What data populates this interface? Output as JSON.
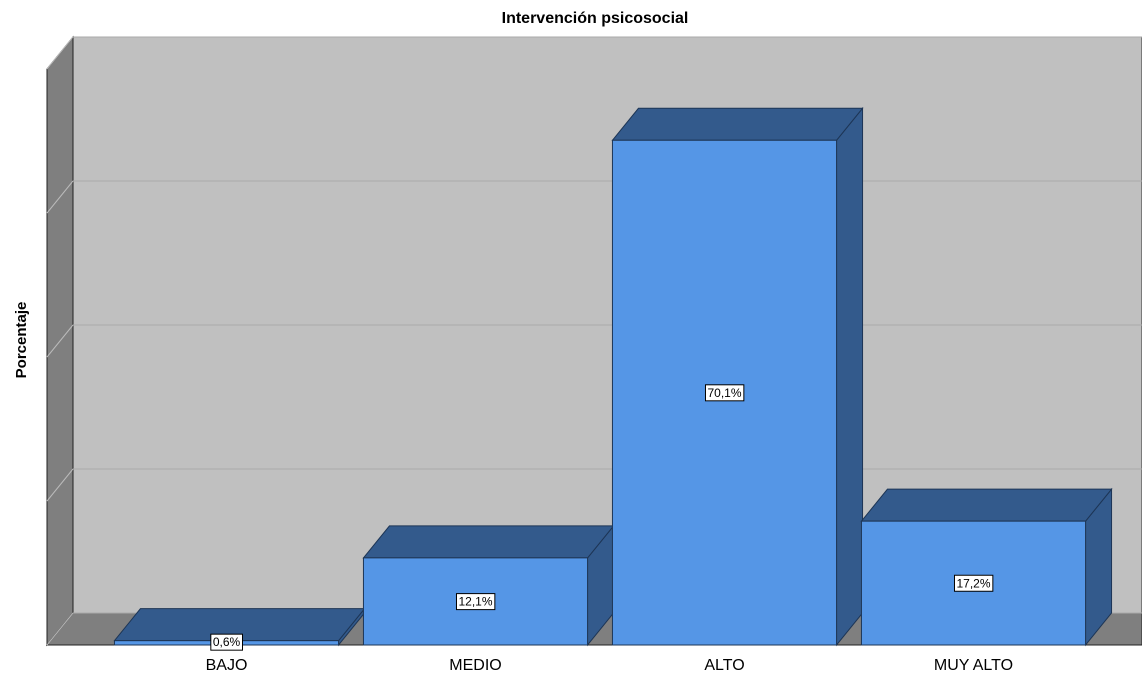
{
  "chart_data": {
    "type": "bar3d",
    "title": "Intervención psicosocial",
    "ylabel": "Porcentaje",
    "categories": [
      "BAJO",
      "MEDIO",
      "ALTO",
      "MUY ALTO"
    ],
    "values": [
      0.6,
      12.1,
      70.1,
      17.2
    ],
    "value_labels": [
      "0,6%",
      "12,1%",
      "70,1%",
      "17,2%"
    ],
    "color": "#5596e6",
    "ylim": [
      0,
      80
    ],
    "yticks": [
      0,
      20,
      40,
      60,
      80
    ],
    "grid": true
  }
}
